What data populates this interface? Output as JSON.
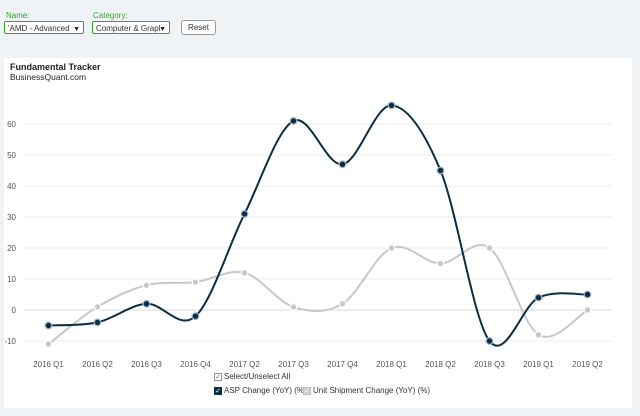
{
  "filters": {
    "name_label": "Name:",
    "name_value": "'AMD - Advanced",
    "category_label": "Category:",
    "category_value": "Computer & Grapl",
    "reset_label": "Reset"
  },
  "chart_data": {
    "type": "line",
    "title": "Fundamental Tracker",
    "subtitle": "BusinessQuant.com",
    "categories": [
      "2016 Q1",
      "2016 Q2",
      "2016 Q3",
      "2016 Q4",
      "2017 Q2",
      "2017 Q3",
      "2017 Q4",
      "2018 Q1",
      "2018 Q2",
      "2018 Q3",
      "2019 Q1",
      "2019 Q2"
    ],
    "yticks": [
      -10,
      0,
      10,
      20,
      30,
      40,
      50,
      60
    ],
    "ylim": [
      -13,
      70
    ],
    "series": [
      {
        "name": "ASP Change (YoY) (%)",
        "color": "#0d2d43",
        "values": [
          -5,
          -4,
          2,
          -2,
          31,
          61,
          47,
          66,
          45,
          -10,
          4,
          5
        ]
      },
      {
        "name": "Unit Shipment Change (YoY) (%)",
        "color": "#c8c8c8",
        "values": [
          -11,
          1,
          8,
          9,
          12,
          1,
          2,
          20,
          15,
          20,
          -8,
          0
        ]
      }
    ],
    "legend": {
      "select_all": "Select/Unselect All",
      "position": "bottom-center"
    },
    "grid": true
  }
}
